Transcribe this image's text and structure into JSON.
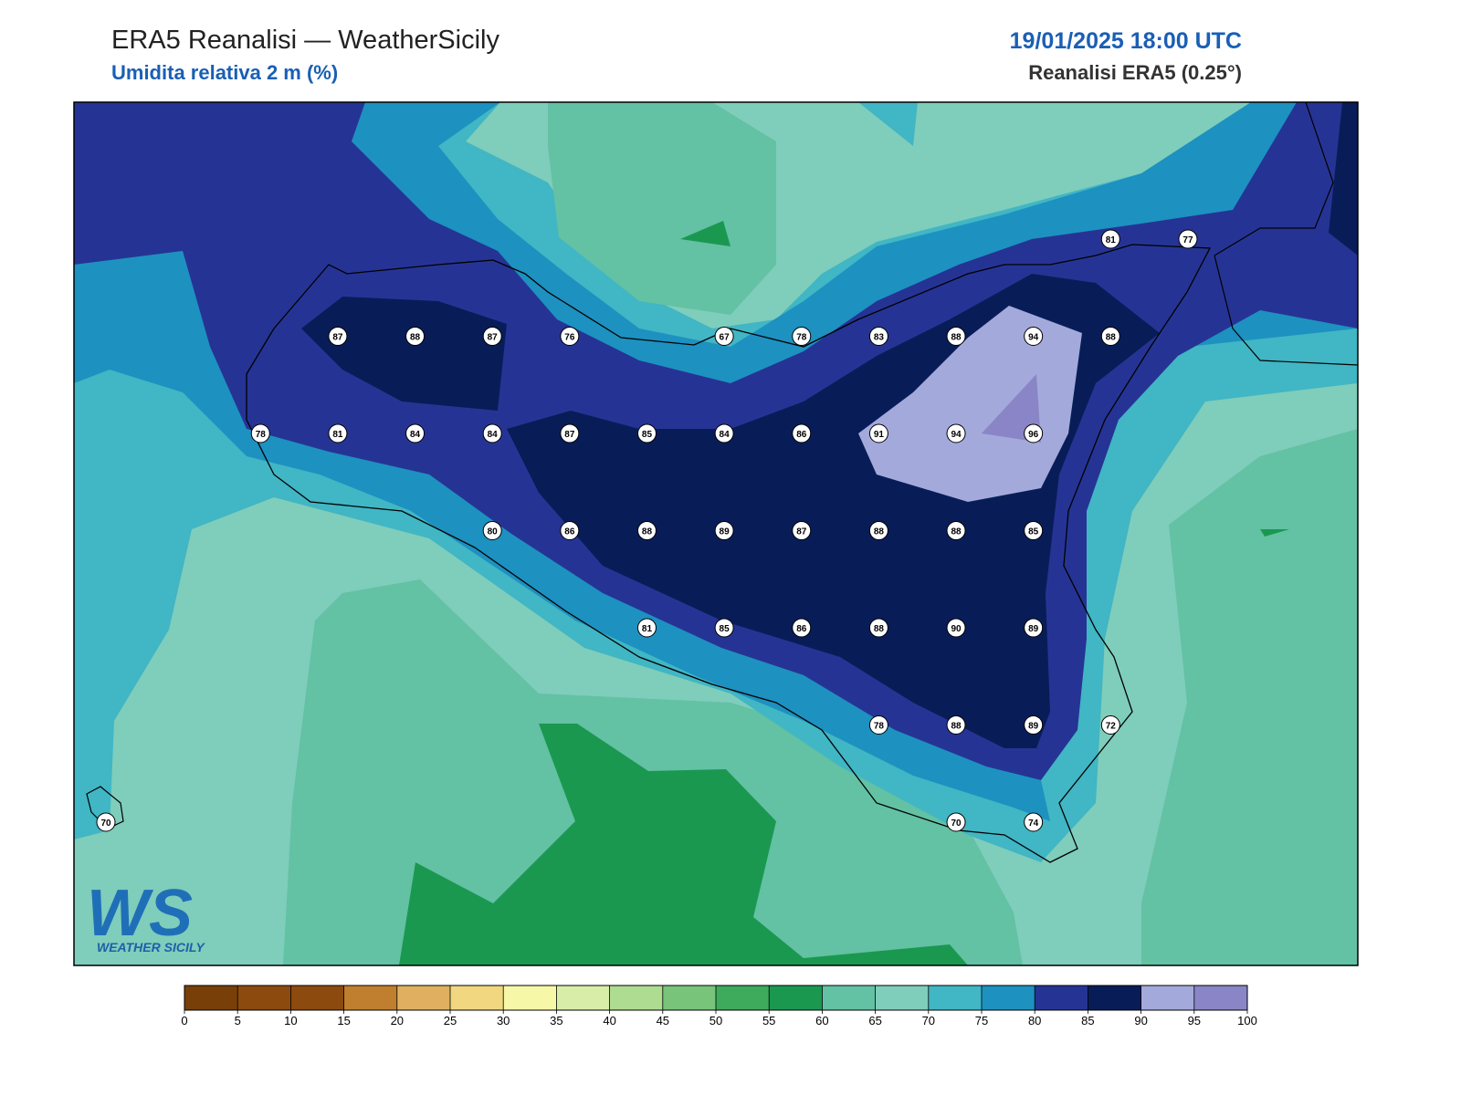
{
  "header": {
    "title": "ERA5 Reanalisi — WeatherSicily",
    "subtitle": "Umidita relativa 2 m (%)",
    "date": "19/01/2025 18:00 UTC",
    "source": "Reanalisi ERA5 (0.25°)"
  },
  "map": {
    "point_values": [
      [
        null,
        null,
        null,
        null,
        null,
        null,
        null,
        null,
        null,
        null,
        null,
        null,
        null,
        81,
        77
      ],
      [
        null,
        null,
        null,
        87,
        88,
        87,
        76,
        null,
        67,
        78,
        83,
        88,
        94,
        88,
        null
      ],
      [
        null,
        null,
        78,
        81,
        84,
        84,
        87,
        85,
        84,
        86,
        91,
        94,
        96,
        null,
        null
      ],
      [
        null,
        null,
        null,
        null,
        null,
        80,
        86,
        88,
        89,
        87,
        88,
        88,
        85,
        null,
        null
      ],
      [
        null,
        null,
        null,
        null,
        null,
        null,
        null,
        81,
        85,
        86,
        88,
        90,
        89,
        null,
        null
      ],
      [
        null,
        null,
        null,
        null,
        null,
        null,
        null,
        null,
        null,
        null,
        78,
        88,
        89,
        72,
        null
      ],
      [
        70,
        null,
        null,
        null,
        null,
        null,
        null,
        null,
        null,
        null,
        null,
        70,
        74,
        null,
        null
      ]
    ]
  },
  "colorbar": {
    "ticks": [
      0,
      5,
      10,
      15,
      20,
      25,
      30,
      35,
      40,
      45,
      50,
      55,
      60,
      65,
      70,
      75,
      80,
      85,
      90,
      95,
      100
    ],
    "colors": [
      "#784008",
      "#8c4a0e",
      "#8c4a0e",
      "#c07f2e",
      "#e0b060",
      "#f0d780",
      "#f7f7a8",
      "#d8eea8",
      "#aedc90",
      "#78c47a",
      "#3daa5c",
      "#1a9850",
      "#63c1a4",
      "#7fcdbb",
      "#41b6c4",
      "#1d91c0",
      "#253494",
      "#081d58",
      "#a3aadb",
      "#8a85c6"
    ]
  },
  "logo": {
    "mark": "WS",
    "name": "WEATHER SICILY"
  }
}
